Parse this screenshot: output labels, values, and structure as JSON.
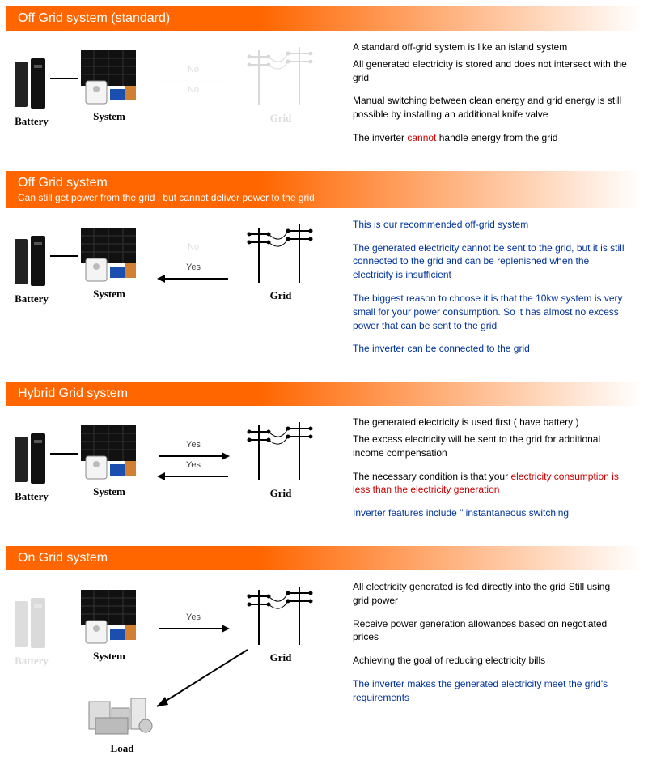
{
  "colors": {
    "orange": "#ff6600",
    "blue": "#003399",
    "red": "#cc0000",
    "faded": "#dddddd",
    "black": "#000000"
  },
  "labels": {
    "battery": "Battery",
    "system": "System",
    "grid": "Grid",
    "load": "Load",
    "yes": "Yes",
    "no": "No"
  },
  "sections": [
    {
      "id": "offgrid-std",
      "title": "Off Grid system (standard)",
      "subtitle": null,
      "diagram": {
        "battery": {
          "visible": true,
          "faded": false
        },
        "system": {
          "visible": true,
          "faded": false
        },
        "grid": {
          "visible": true,
          "faded": true
        },
        "load": {
          "visible": false
        },
        "conn_battery_system": true,
        "arrows": [
          {
            "dir": "right",
            "label": "No",
            "faded": true,
            "y": 30
          },
          {
            "dir": "left",
            "label": "No",
            "faded": true,
            "y": 55
          }
        ]
      },
      "paragraphs": [
        {
          "runs": [
            {
              "t": "A standard off-grid system is like an island system",
              "c": "black"
            }
          ]
        },
        {
          "runs": [
            {
              "t": "All generated electricity is stored and does not intersect with the grid",
              "c": "black"
            }
          ],
          "gapBefore": -8
        },
        {
          "runs": [
            {
              "t": "Manual switching between clean energy and grid energy is still possible by installing an additional knife valve",
              "c": "black"
            }
          ]
        },
        {
          "runs": [
            {
              "t": "The inverter ",
              "c": "black"
            },
            {
              "t": "cannot",
              "c": "red"
            },
            {
              "t": " handle energy from the grid",
              "c": "black"
            }
          ]
        }
      ]
    },
    {
      "id": "offgrid",
      "title": "Off Grid system",
      "subtitle": "Can still get power from the grid , but cannot deliver power to the grid",
      "diagram": {
        "battery": {
          "visible": true,
          "faded": false
        },
        "system": {
          "visible": true,
          "faded": false
        },
        "grid": {
          "visible": true,
          "faded": false
        },
        "load": {
          "visible": false
        },
        "conn_battery_system": true,
        "arrows": [
          {
            "dir": "right",
            "label": "No",
            "faded": true,
            "y": 30
          },
          {
            "dir": "left",
            "label": "Yes",
            "faded": false,
            "y": 55
          }
        ]
      },
      "paragraphs": [
        {
          "runs": [
            {
              "t": "This is our recommended off-grid system",
              "c": "blue"
            }
          ]
        },
        {
          "runs": [
            {
              "t": "The generated electricity cannot be sent to the grid, but it is still connected to the grid and can be replenished when the electricity is insufficient",
              "c": "blue"
            }
          ]
        },
        {
          "runs": [
            {
              "t": "The biggest reason to choose it is that the 10kw system is very small for your power consumption. So it has almost no excess power that can be sent to the grid",
              "c": "blue"
            }
          ]
        },
        {
          "runs": [
            {
              "t": "The inverter can be connected to the grid",
              "c": "blue"
            }
          ]
        }
      ]
    },
    {
      "id": "hybrid",
      "title": "Hybrid Grid system",
      "subtitle": null,
      "diagram": {
        "battery": {
          "visible": true,
          "faded": false
        },
        "system": {
          "visible": true,
          "faded": false
        },
        "grid": {
          "visible": true,
          "faded": false
        },
        "load": {
          "visible": false
        },
        "conn_battery_system": true,
        "arrows": [
          {
            "dir": "right",
            "label": "Yes",
            "faded": false,
            "y": 30
          },
          {
            "dir": "left",
            "label": "Yes",
            "faded": false,
            "y": 55
          }
        ]
      },
      "paragraphs": [
        {
          "runs": [
            {
              "t": "The generated electricity is used first ( have battery )",
              "c": "black"
            }
          ]
        },
        {
          "runs": [
            {
              "t": "The excess electricity will be sent to the grid for additional income compensation",
              "c": "black"
            }
          ],
          "gapBefore": -8
        },
        {
          "runs": [
            {
              "t": "The necessary condition is that your ",
              "c": "black"
            },
            {
              "t": "electricity consumption is less than the electricity generation",
              "c": "red"
            }
          ]
        },
        {
          "runs": [
            {
              "t": "Inverter features include \" instantaneous switching",
              "c": "blue"
            }
          ]
        }
      ]
    },
    {
      "id": "ongrid",
      "title": "On Grid system",
      "subtitle": null,
      "diagram": {
        "battery": {
          "visible": true,
          "faded": true
        },
        "system": {
          "visible": true,
          "faded": false
        },
        "grid": {
          "visible": true,
          "faded": false
        },
        "load": {
          "visible": true
        },
        "conn_battery_system": false,
        "arrows": [
          {
            "dir": "right",
            "label": "Yes",
            "faded": false,
            "y": 40
          }
        ],
        "arrow_to_load": true
      },
      "paragraphs": [
        {
          "runs": [
            {
              "t": "All electricity generated is fed directly into the grid Still using grid power",
              "c": "black"
            }
          ]
        },
        {
          "runs": [
            {
              "t": "Receive power generation allowances based on negotiated prices",
              "c": "black"
            }
          ]
        },
        {
          "runs": [
            {
              "t": "Achieving the goal of reducing electricity bills",
              "c": "black"
            }
          ]
        },
        {
          "runs": [
            {
              "t": "The inverter makes the generated electricity meet the grid's requirements",
              "c": "blue"
            }
          ]
        }
      ]
    }
  ]
}
